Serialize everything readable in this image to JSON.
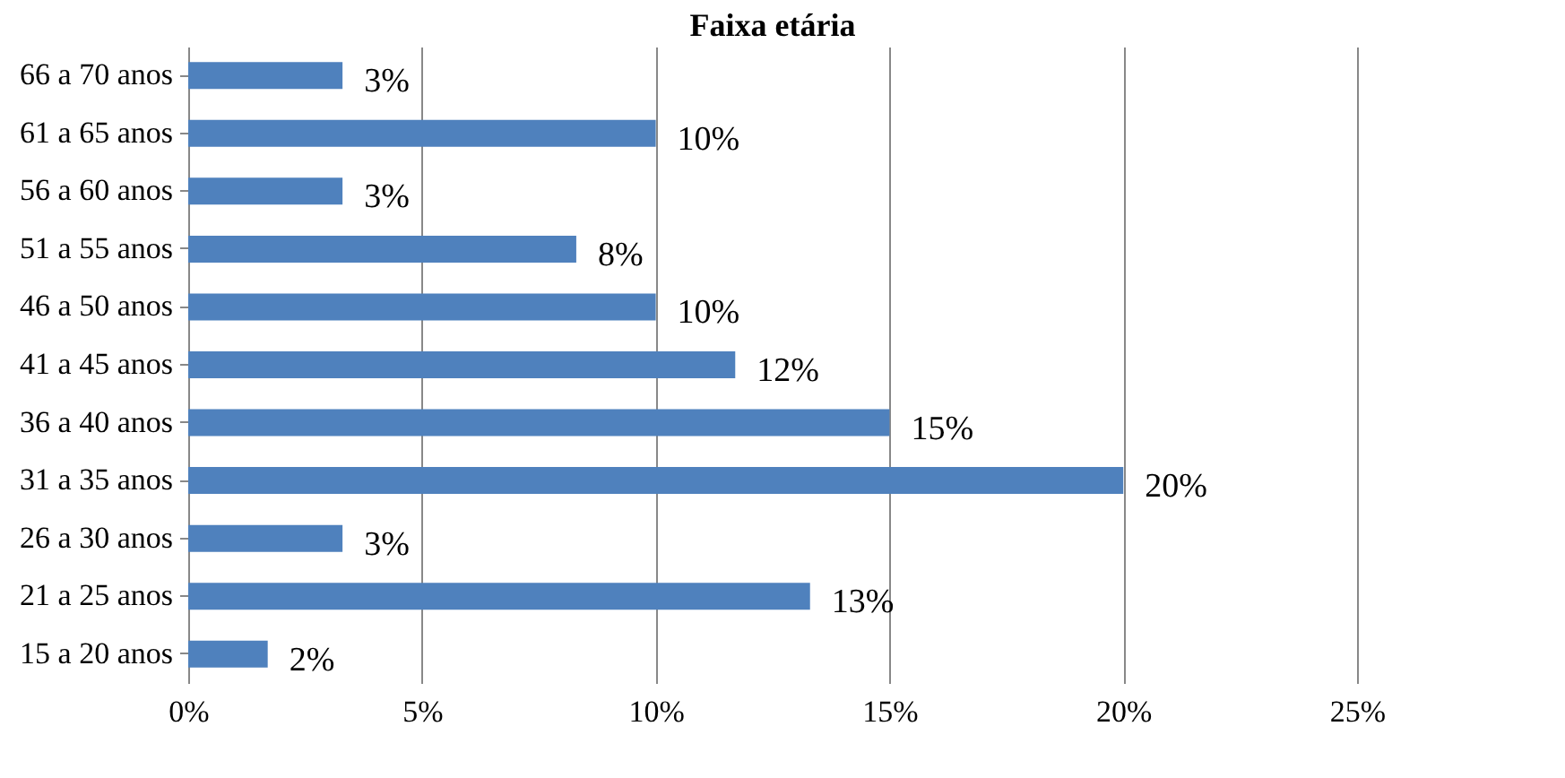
{
  "chart_data": {
    "type": "bar",
    "orientation": "horizontal",
    "title": "Faixa etária",
    "categories": [
      "66 a 70 anos",
      "61 a 65 anos",
      "56 a 60 anos",
      "51 a 55 anos",
      "46 a 50 anos",
      "41 a 45 anos",
      "36 a 40 anos",
      "31 a 35 anos",
      "26 a 30 anos",
      "21 a 25 anos",
      "15 a 20 anos"
    ],
    "values": [
      3.3,
      10,
      3.3,
      8.3,
      10,
      11.7,
      15,
      20,
      3.3,
      13.3,
      1.7
    ],
    "value_labels": [
      "3%",
      "10%",
      "3%",
      "8%",
      "10%",
      "12%",
      "15%",
      "20%",
      "3%",
      "13%",
      "2%"
    ],
    "color": "#4f81bd",
    "xlim": [
      0,
      25
    ],
    "xticks": [
      {
        "value": 0,
        "label": "0%"
      },
      {
        "value": 5,
        "label": "5%"
      },
      {
        "value": 10,
        "label": "10%"
      },
      {
        "value": 15,
        "label": "15%"
      },
      {
        "value": 20,
        "label": "20%"
      },
      {
        "value": 25,
        "label": "25%"
      }
    ],
    "grid": "x"
  }
}
